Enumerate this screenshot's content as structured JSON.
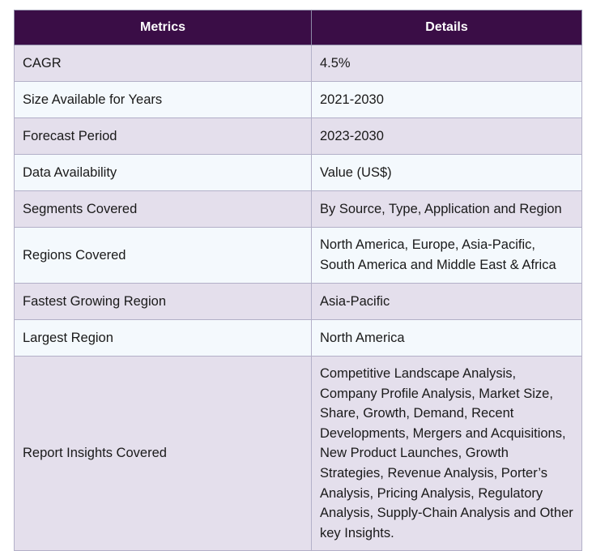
{
  "table": {
    "headers": [
      "Metrics",
      "Details"
    ],
    "rows": [
      {
        "metric": "CAGR",
        "detail": "4.5%"
      },
      {
        "metric": "Size Available for Years",
        "detail": "2021-2030"
      },
      {
        "metric": "Forecast Period",
        "detail": "2023-2030"
      },
      {
        "metric": "Data Availability",
        "detail": "Value (US$)"
      },
      {
        "metric": "Segments Covered",
        "detail": "By Source, Type, Application and Region"
      },
      {
        "metric": "Regions Covered",
        "detail": "North America, Europe, Asia-Pacific, South America and Middle East & Africa"
      },
      {
        "metric": "Fastest Growing Region",
        "detail": "Asia-Pacific"
      },
      {
        "metric": "Largest Region",
        "detail": "North America"
      },
      {
        "metric": "Report Insights Covered",
        "detail": "Competitive Landscape Analysis, Company Profile Analysis, Market Size, Share, Growth, Demand, Recent Developments, Mergers and Acquisitions, New Product Launches, Growth Strategies, Revenue Analysis, Porter’s Analysis, Pricing Analysis, Regulatory Analysis, Supply-Chain Analysis and Other key Insights."
      }
    ]
  }
}
